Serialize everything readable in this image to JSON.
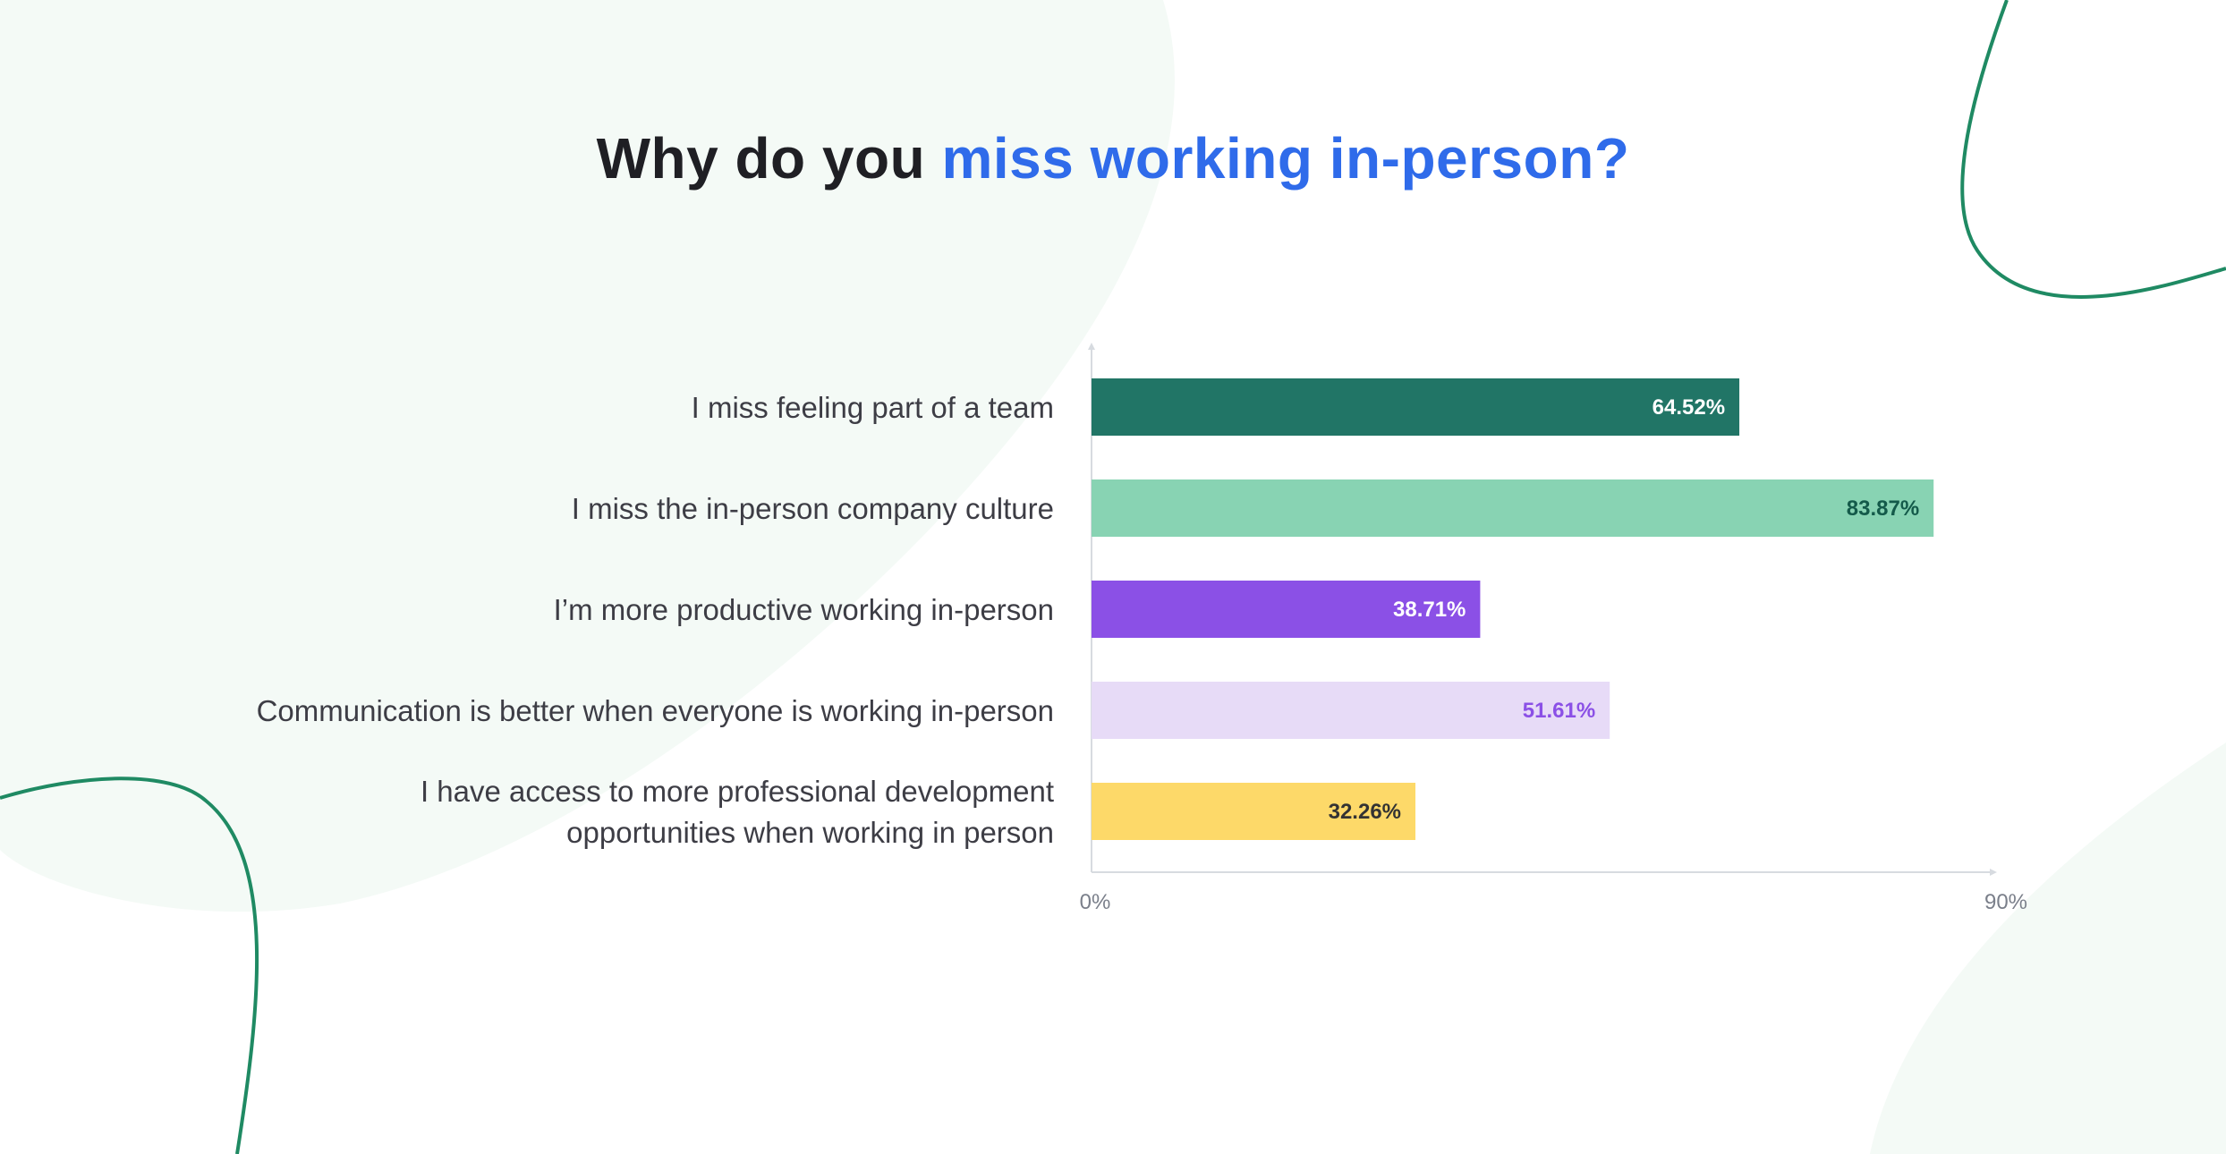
{
  "title": {
    "prefix": "Why do you ",
    "accent": "miss working in-person?"
  },
  "colors": {
    "accent": "#2f6bea",
    "blob": "#f4faf6",
    "line": "#1f8a63"
  },
  "chart_data": {
    "type": "bar",
    "orientation": "horizontal",
    "categories": [
      [
        "I miss feeling part of a team"
      ],
      [
        "I miss the in-person company culture"
      ],
      [
        "I’m more productive working in-person"
      ],
      [
        "Communication is better when everyone is working in-person"
      ],
      [
        "I have access to more professional development",
        "opportunities when working in person"
      ]
    ],
    "values": [
      64.52,
      83.87,
      38.71,
      51.61,
      32.26
    ],
    "value_labels": [
      "64.52%",
      "83.87%",
      "38.71%",
      "51.61%",
      "32.26%"
    ],
    "bar_colors": [
      "#217566",
      "#88d3b3",
      "#8b50e6",
      "#e7dbf7",
      "#fdd969"
    ],
    "label_colors": [
      "#ffffff",
      "#145a4a",
      "#ffffff",
      "#8b50e6",
      "#333333"
    ],
    "xlim": [
      0,
      90
    ],
    "x_ticks": [
      "0%",
      "90%"
    ],
    "grid": false,
    "legend": "none"
  }
}
